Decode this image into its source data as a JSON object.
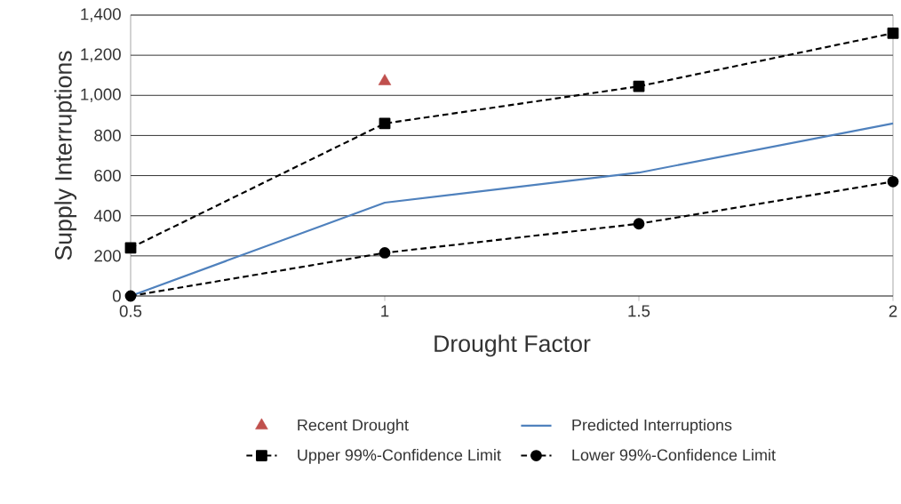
{
  "chart_data": {
    "type": "line",
    "xlabel": "Drought Factor",
    "ylabel": "Supply Interruptions",
    "xlim": [
      0.5,
      2
    ],
    "xticks": [
      0.5,
      1,
      1.5,
      2
    ],
    "ylim": [
      0,
      1400
    ],
    "yticks": [
      0,
      200,
      400,
      600,
      800,
      {
        "value": 1000,
        "label": "1,000"
      },
      {
        "value": 1200,
        "label": "1,200"
      },
      {
        "value": 1400,
        "label": "1,400"
      }
    ],
    "grid": "y",
    "legend": "bottom",
    "series": [
      {
        "name": "Recent Drought",
        "type": "scatter",
        "marker": "triangle",
        "color": "#c0504d",
        "x": [
          1
        ],
        "values": [
          1070
        ]
      },
      {
        "name": "Predicted Interruptions",
        "marker": "none",
        "line_style": "solid",
        "color": "#4f81bd",
        "x": [
          0.5,
          1,
          1.5,
          2
        ],
        "values": [
          0,
          465,
          615,
          860
        ]
      },
      {
        "name": "Upper 99%-Confidence Limit",
        "marker": "square",
        "line_style": "dashed",
        "color": "#000000",
        "x": [
          0.5,
          1,
          1.5,
          2
        ],
        "values": [
          240,
          860,
          1045,
          1310
        ]
      },
      {
        "name": "Lower 99%-Confidence Limit",
        "marker": "circle",
        "line_style": "dashed",
        "color": "#000000",
        "x": [
          0.5,
          1,
          1.5,
          2
        ],
        "values": [
          0,
          215,
          360,
          570
        ]
      }
    ]
  }
}
